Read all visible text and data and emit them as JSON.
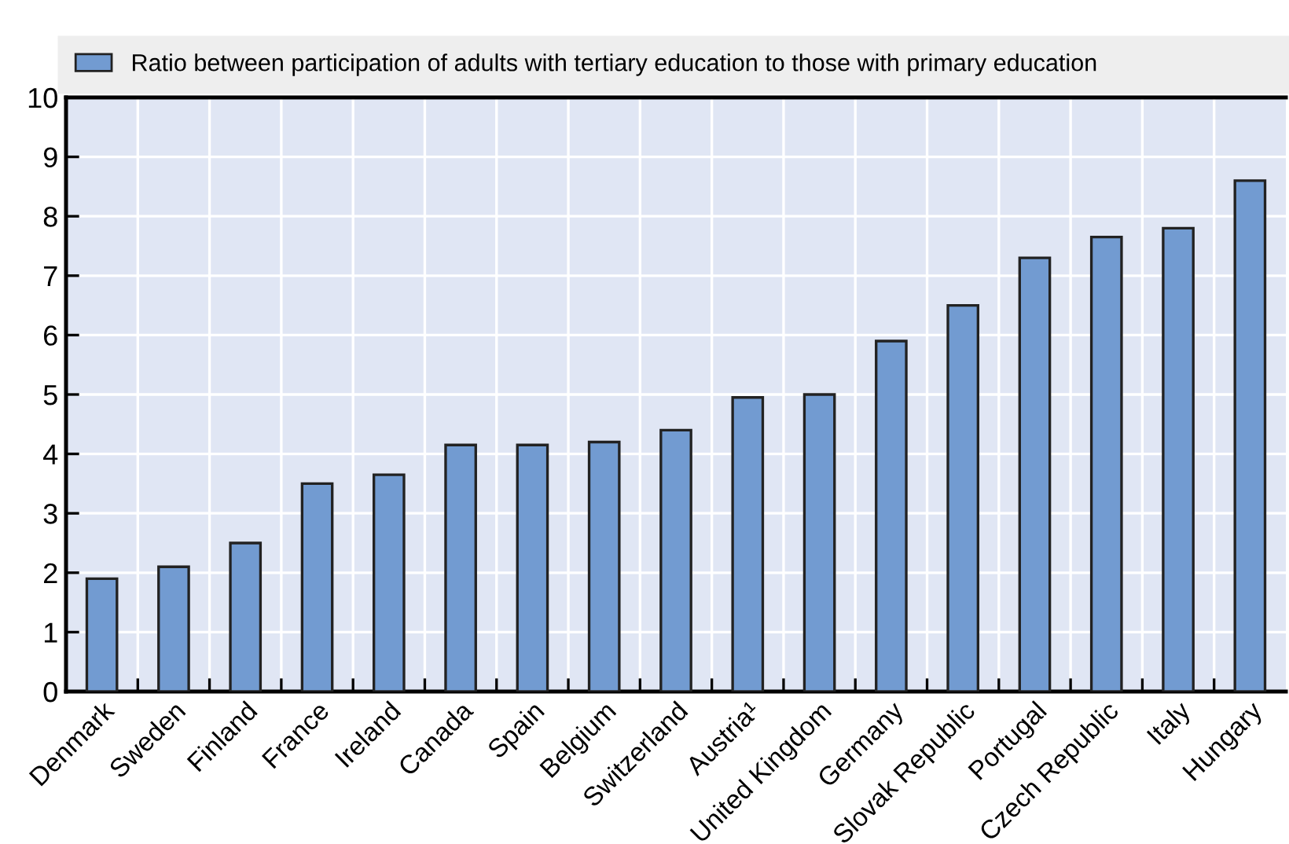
{
  "chart_data": {
    "type": "bar",
    "categories": [
      "Denmark",
      "Sweden",
      "Finland",
      "France",
      "Ireland",
      "Canada",
      "Spain",
      "Belgium",
      "Switzerland",
      "Austria¹",
      "United Kingdom",
      "Germany",
      "Slovak Republic",
      "Portugal",
      "Czech Republic",
      "Italy",
      "Hungary"
    ],
    "series": [
      {
        "name": "Ratio between participation of adults with tertiary education to those with primary education",
        "color": "#729bd1",
        "values": [
          1.9,
          2.1,
          2.5,
          3.5,
          3.65,
          4.15,
          4.15,
          4.2,
          4.4,
          4.95,
          5.0,
          5.9,
          6.5,
          7.3,
          7.65,
          7.8,
          8.6
        ]
      }
    ],
    "ylim": [
      0,
      10
    ],
    "yticks": [
      0,
      1,
      2,
      3,
      4,
      5,
      6,
      7,
      8,
      9,
      10
    ],
    "grid": true,
    "legend": "top"
  }
}
